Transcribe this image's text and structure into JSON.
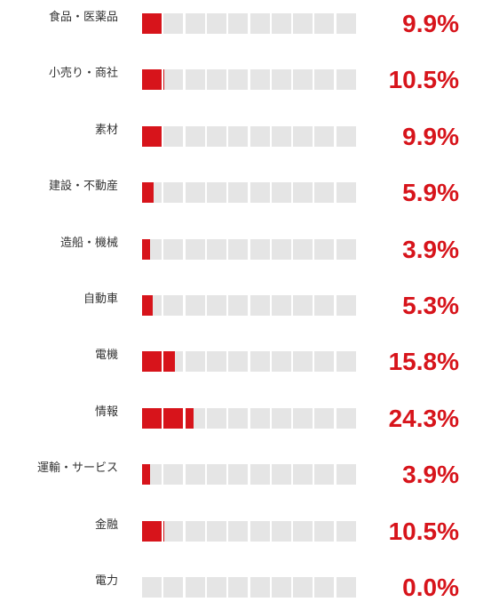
{
  "chart_data": {
    "type": "bar",
    "categories": [
      "食品・医薬品",
      "小売り・商社",
      "素材",
      "建設・不動産",
      "造船・機械",
      "自動車",
      "電機",
      "情報",
      "運輸・サービス",
      "金融",
      "電力"
    ],
    "values": [
      9.9,
      10.5,
      9.9,
      5.9,
      3.9,
      5.3,
      15.8,
      24.3,
      3.9,
      10.5,
      0.0
    ],
    "value_labels": [
      "9.9%",
      "10.5%",
      "9.9%",
      "5.9%",
      "3.9%",
      "5.3%",
      "15.8%",
      "24.3%",
      "3.9%",
      "10.5%",
      "0.0%"
    ],
    "unit_per_cell": 10,
    "cell_count": 10,
    "xlim": [
      0,
      100
    ],
    "title": "",
    "xlabel": "",
    "ylabel": "",
    "grid": false,
    "legend": "none",
    "colors": {
      "filled": "#d7141b",
      "empty": "#e5e5e5",
      "value_text": "#d7141b",
      "label_text": "#333333"
    }
  }
}
